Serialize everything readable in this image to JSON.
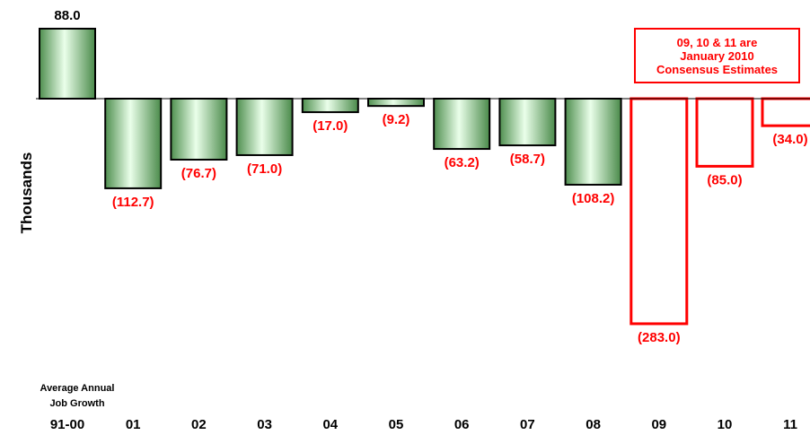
{
  "chart_data": {
    "type": "bar",
    "categories": [
      "91-00",
      "01",
      "02",
      "03",
      "04",
      "05",
      "06",
      "07",
      "08",
      "09",
      "10",
      "11"
    ],
    "values": [
      88.0,
      -112.7,
      -76.7,
      -71.0,
      -17.0,
      -9.2,
      -63.2,
      -58.7,
      -108.2,
      -283.0,
      -85.0,
      -34.0
    ],
    "value_labels": [
      "88.0",
      "(112.7)",
      "(76.7)",
      "(71.0)",
      "(17.0)",
      "(9.2)",
      "(63.2)",
      "(58.7)",
      "(108.2)",
      "(283.0)",
      "(85.0)",
      "(34.0)"
    ],
    "estimate_flags": [
      false,
      false,
      false,
      false,
      false,
      false,
      false,
      false,
      false,
      true,
      true,
      true
    ],
    "ylabel": "Thousands",
    "category_note": [
      "Average Annual",
      "Job Growth"
    ],
    "annotation": [
      "09, 10 & 11 are",
      "January 2010",
      "Consensus Estimates"
    ],
    "colors": {
      "actual_fill_light": "#eaffea",
      "actual_fill_dark": "#4f8f4f",
      "actual_border": "#000000",
      "estimate_border": "#ff0000",
      "negative_label": "#ff0000",
      "positive_label": "#000000"
    },
    "grid": false
  }
}
